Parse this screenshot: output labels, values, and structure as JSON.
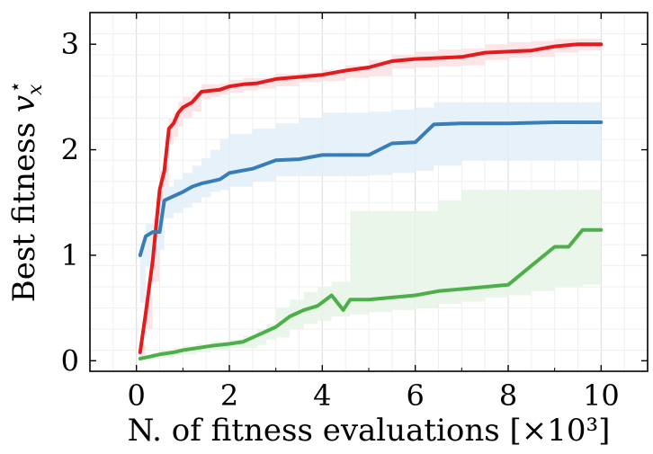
{
  "chart_data": {
    "type": "line",
    "title": "",
    "xlabel": "N. of fitness evaluations [×10³]",
    "ylabel": "Best fitness v_x*",
    "ylabel_main": "Best fitness ",
    "ylabel_var": "v",
    "ylabel_sub": "x",
    "ylabel_sup": "⋆",
    "xlim": [
      -1,
      11
    ],
    "ylim": [
      -0.1,
      3.3
    ],
    "xticks": [
      0,
      2,
      4,
      6,
      8,
      10
    ],
    "xtick_labels": [
      "0",
      "2",
      "4",
      "6",
      "8",
      "10"
    ],
    "yticks": [
      0,
      1,
      2,
      3
    ],
    "ytick_labels": [
      "0",
      "1",
      "2",
      "3"
    ],
    "grid": true,
    "legend": "none",
    "series": [
      {
        "color": "#e41a1c",
        "band_color": "#fbe1e2",
        "x": [
          0.08,
          0.2,
          0.35,
          0.5,
          0.6,
          0.7,
          0.8,
          0.9,
          1.0,
          1.2,
          1.4,
          1.6,
          1.8,
          2.0,
          2.3,
          2.6,
          3.0,
          3.5,
          4.0,
          4.5,
          5.0,
          5.5,
          6.0,
          6.5,
          7.0,
          7.5,
          8.0,
          8.5,
          9.0,
          9.5,
          10.0
        ],
        "y": [
          0.08,
          0.45,
          0.95,
          1.62,
          1.8,
          2.2,
          2.25,
          2.35,
          2.4,
          2.45,
          2.55,
          2.56,
          2.57,
          2.6,
          2.62,
          2.63,
          2.67,
          2.69,
          2.71,
          2.75,
          2.78,
          2.84,
          2.86,
          2.87,
          2.88,
          2.92,
          2.93,
          2.94,
          2.98,
          3.0,
          3.0
        ],
        "upper": [
          0.15,
          0.6,
          1.2,
          1.8,
          1.95,
          2.3,
          2.35,
          2.45,
          2.5,
          2.55,
          2.62,
          2.62,
          2.63,
          2.66,
          2.68,
          2.68,
          2.72,
          2.73,
          2.76,
          2.8,
          2.85,
          2.9,
          2.93,
          2.95,
          2.96,
          3.0,
          3.02,
          3.03,
          3.05,
          3.05,
          3.05
        ],
        "lower": [
          0.02,
          0.3,
          0.75,
          1.45,
          1.65,
          2.05,
          2.12,
          2.22,
          2.3,
          2.36,
          2.48,
          2.5,
          2.52,
          2.54,
          2.56,
          2.58,
          2.6,
          2.64,
          2.65,
          2.68,
          2.7,
          2.77,
          2.78,
          2.79,
          2.8,
          2.85,
          2.87,
          2.88,
          2.92,
          2.94,
          2.95
        ]
      },
      {
        "color": "#377eb8",
        "band_color": "#e3eef8",
        "x": [
          0.08,
          0.2,
          0.35,
          0.5,
          0.6,
          0.8,
          1.0,
          1.2,
          1.4,
          1.6,
          1.8,
          2.0,
          2.5,
          3.0,
          3.5,
          4.0,
          4.5,
          5.0,
          5.5,
          6.0,
          6.4,
          7.0,
          8.0,
          9.0,
          10.0
        ],
        "y": [
          1.0,
          1.18,
          1.22,
          1.22,
          1.52,
          1.56,
          1.6,
          1.65,
          1.68,
          1.7,
          1.72,
          1.78,
          1.82,
          1.9,
          1.91,
          1.95,
          1.95,
          1.95,
          2.06,
          2.07,
          2.24,
          2.25,
          2.25,
          2.26,
          2.26
        ],
        "upper": [
          1.1,
          1.3,
          1.35,
          1.4,
          1.65,
          1.72,
          1.78,
          1.85,
          1.92,
          2.0,
          2.1,
          2.15,
          2.2,
          2.25,
          2.3,
          2.35,
          2.35,
          2.36,
          2.38,
          2.4,
          2.45,
          2.45,
          2.45,
          2.45,
          2.45
        ],
        "lower": [
          0.55,
          0.9,
          1.0,
          1.05,
          1.35,
          1.4,
          1.45,
          1.5,
          1.55,
          1.6,
          1.62,
          1.65,
          1.7,
          1.75,
          1.75,
          1.75,
          1.75,
          1.76,
          1.78,
          1.8,
          1.85,
          1.9,
          1.9,
          1.9,
          1.9
        ]
      },
      {
        "color": "#4daf4a",
        "band_color": "#e8f4e6",
        "x": [
          0.08,
          0.3,
          0.5,
          0.8,
          1.0,
          1.3,
          1.6,
          2.0,
          2.3,
          2.6,
          2.8,
          3.0,
          3.3,
          3.6,
          3.9,
          4.2,
          4.45,
          4.6,
          5.0,
          5.5,
          6.0,
          6.5,
          7.0,
          7.5,
          8.0,
          8.5,
          9.0,
          9.3,
          9.6,
          10.0
        ],
        "y": [
          0.02,
          0.04,
          0.06,
          0.08,
          0.1,
          0.12,
          0.14,
          0.16,
          0.18,
          0.24,
          0.28,
          0.32,
          0.42,
          0.48,
          0.52,
          0.62,
          0.48,
          0.58,
          0.58,
          0.6,
          0.62,
          0.66,
          0.68,
          0.7,
          0.72,
          0.9,
          1.08,
          1.08,
          1.24,
          1.24
        ],
        "upper": [
          0.05,
          0.07,
          0.1,
          0.12,
          0.14,
          0.16,
          0.18,
          0.2,
          0.24,
          0.3,
          0.35,
          0.5,
          0.58,
          0.65,
          0.7,
          0.75,
          0.75,
          1.42,
          1.42,
          1.42,
          1.42,
          1.52,
          1.62,
          1.62,
          1.62,
          1.62,
          1.62,
          1.62,
          1.62,
          1.62
        ],
        "lower": [
          0.0,
          0.02,
          0.03,
          0.05,
          0.06,
          0.08,
          0.1,
          0.12,
          0.12,
          0.15,
          0.2,
          0.22,
          0.3,
          0.35,
          0.38,
          0.42,
          0.42,
          0.44,
          0.46,
          0.48,
          0.5,
          0.54,
          0.56,
          0.6,
          0.62,
          0.66,
          0.7,
          0.7,
          0.72,
          0.72
        ]
      }
    ]
  }
}
